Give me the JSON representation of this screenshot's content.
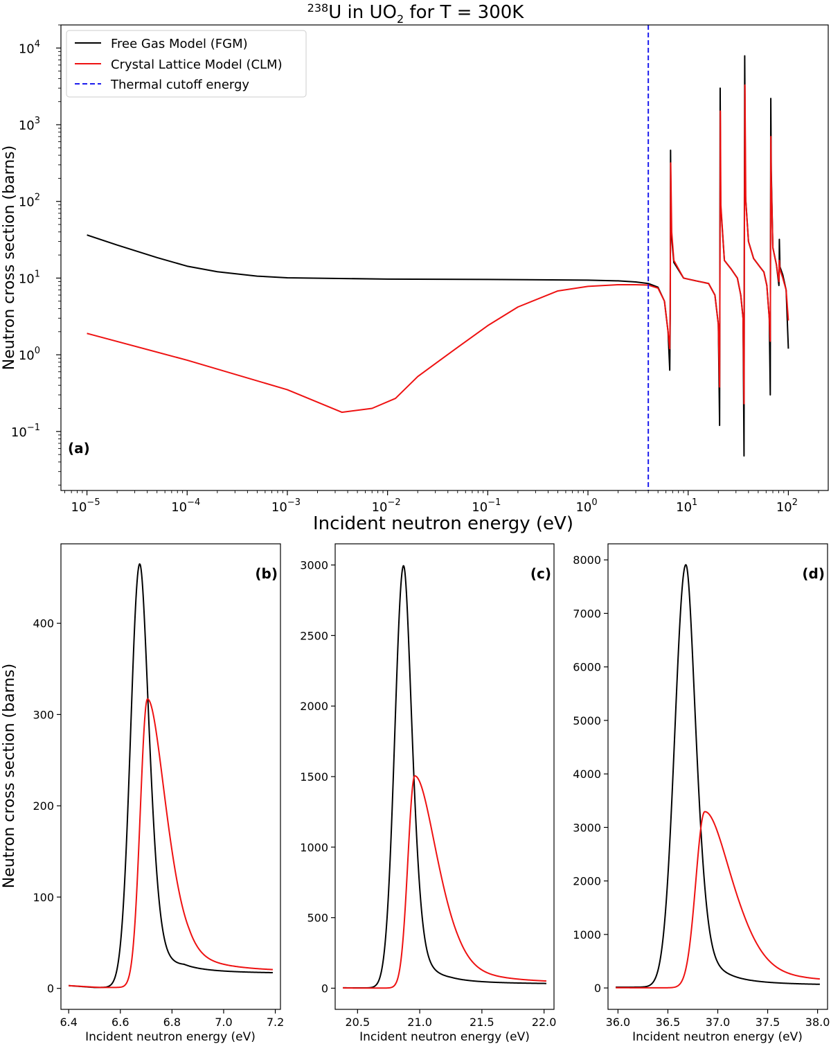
{
  "figure": {
    "title_iso": "238",
    "title_mid": "U in UO",
    "title_sub": "2",
    "title_end": " for T = 300K",
    "shared_ylabel": "Neutron cross section (barns)"
  },
  "chart_data": [
    {
      "panel": "(a)",
      "type": "line",
      "xscale": "log",
      "yscale": "log",
      "xlabel": "Incident neutron energy (eV)",
      "ylabel": "Neutron cross section (barns)",
      "xlim": [
        5.5e-06,
        250
      ],
      "ylim": [
        0.017,
        20000
      ],
      "x_ticks": [
        {
          "value": 1e-05,
          "base": "10",
          "exp": "−5"
        },
        {
          "value": 0.0001,
          "base": "10",
          "exp": "−4"
        },
        {
          "value": 0.001,
          "base": "10",
          "exp": "−3"
        },
        {
          "value": 0.01,
          "base": "10",
          "exp": "−2"
        },
        {
          "value": 0.1,
          "base": "10",
          "exp": "−1"
        },
        {
          "value": 1,
          "base": "10",
          "exp": "0"
        },
        {
          "value": 10,
          "base": "10",
          "exp": "1"
        },
        {
          "value": 100,
          "base": "10",
          "exp": "2"
        }
      ],
      "y_ticks": [
        {
          "value": 0.1,
          "base": "10",
          "exp": "−1"
        },
        {
          "value": 1,
          "base": "10",
          "exp": "0"
        },
        {
          "value": 10,
          "base": "10",
          "exp": "1"
        },
        {
          "value": 100,
          "base": "10",
          "exp": "2"
        },
        {
          "value": 1000,
          "base": "10",
          "exp": "3"
        },
        {
          "value": 10000,
          "base": "10",
          "exp": "4"
        }
      ],
      "legend_position": "upper-left",
      "series": [
        {
          "name": "Free Gas Model (FGM)",
          "color": "#000000",
          "style": "solid",
          "points": [
            [
              1e-05,
              36.5
            ],
            [
              2e-05,
              27
            ],
            [
              5e-05,
              18.5
            ],
            [
              0.0001,
              14.3
            ],
            [
              0.0002,
              12.1
            ],
            [
              0.0005,
              10.6
            ],
            [
              0.001,
              10.1
            ],
            [
              0.01,
              9.7
            ],
            [
              0.1,
              9.6
            ],
            [
              1,
              9.4
            ],
            [
              2,
              9.2
            ],
            [
              3,
              8.9
            ],
            [
              4,
              8.5
            ],
            [
              5,
              7.6
            ],
            [
              5.8,
              5
            ],
            [
              6.3,
              2
            ],
            [
              6.55,
              0.63
            ],
            [
              6.62,
              3
            ],
            [
              6.675,
              465
            ],
            [
              6.75,
              40
            ],
            [
              7.2,
              16
            ],
            [
              9,
              10
            ],
            [
              12,
              9.2
            ],
            [
              16,
              8.5
            ],
            [
              18.5,
              6
            ],
            [
              20,
              2.5
            ],
            [
              20.6,
              0.12
            ],
            [
              20.72,
              10
            ],
            [
              20.87,
              2995
            ],
            [
              21.1,
              90
            ],
            [
              23,
              17
            ],
            [
              27,
              13
            ],
            [
              31,
              10
            ],
            [
              33.5,
              6
            ],
            [
              35.3,
              3
            ],
            [
              36.1,
              0.048
            ],
            [
              36.3,
              12
            ],
            [
              36.68,
              7910
            ],
            [
              37.3,
              120
            ],
            [
              40,
              30
            ],
            [
              45,
              18
            ],
            [
              52,
              14
            ],
            [
              57,
              12
            ],
            [
              61,
              8
            ],
            [
              64.5,
              3
            ],
            [
              66,
              0.3
            ],
            [
              66.3,
              15
            ],
            [
              66.8,
              2200
            ],
            [
              67.5,
              250
            ],
            [
              70,
              25
            ],
            [
              76,
              15
            ],
            [
              80.5,
              8
            ],
            [
              80.9,
              10
            ],
            [
              81.3,
              32
            ],
            [
              82.5,
              14
            ],
            [
              88,
              11
            ],
            [
              95,
              7
            ],
            [
              100,
              1.2
            ]
          ]
        },
        {
          "name": "Crystal Lattice Model (CLM)",
          "color": "#ee1111",
          "style": "solid",
          "points": [
            [
              1e-05,
              1.9
            ],
            [
              0.0001,
              0.85
            ],
            [
              0.001,
              0.35
            ],
            [
              0.0035,
              0.178
            ],
            [
              0.007,
              0.2
            ],
            [
              0.012,
              0.27
            ],
            [
              0.02,
              0.52
            ],
            [
              0.05,
              1.25
            ],
            [
              0.1,
              2.4
            ],
            [
              0.2,
              4.2
            ],
            [
              0.5,
              6.8
            ],
            [
              1,
              7.8
            ],
            [
              2,
              8.2
            ],
            [
              3,
              8.2
            ],
            [
              4,
              8.1
            ],
            [
              5,
              7.4
            ],
            [
              5.8,
              5
            ],
            [
              6.3,
              2
            ],
            [
              6.55,
              1.2
            ],
            [
              6.62,
              4
            ],
            [
              6.7,
              317
            ],
            [
              6.85,
              40
            ],
            [
              7.2,
              17
            ],
            [
              9,
              10
            ],
            [
              12,
              9.2
            ],
            [
              16,
              8.5
            ],
            [
              18.5,
              6
            ],
            [
              20,
              2.5
            ],
            [
              20.6,
              0.38
            ],
            [
              20.78,
              15
            ],
            [
              20.96,
              1505
            ],
            [
              21.2,
              90
            ],
            [
              23,
              17
            ],
            [
              27,
              13
            ],
            [
              31,
              10
            ],
            [
              33.5,
              6
            ],
            [
              35.3,
              3
            ],
            [
              36.1,
              0.23
            ],
            [
              36.35,
              20
            ],
            [
              36.87,
              3295
            ],
            [
              37.6,
              100
            ],
            [
              40,
              30
            ],
            [
              45,
              18
            ],
            [
              52,
              14
            ],
            [
              57,
              12
            ],
            [
              61,
              8
            ],
            [
              64.5,
              3
            ],
            [
              66,
              1.5
            ],
            [
              66.4,
              20
            ],
            [
              66.9,
              700
            ],
            [
              67.5,
              200
            ],
            [
              70,
              25
            ],
            [
              76,
              15
            ],
            [
              80.5,
              9
            ],
            [
              80.9,
              11
            ],
            [
              81.3,
              17
            ],
            [
              82.5,
              13
            ],
            [
              88,
              10
            ],
            [
              95,
              7
            ],
            [
              100,
              2.8
            ]
          ]
        },
        {
          "name": "Thermal cutoff energy",
          "color": "#1a1aee",
          "style": "dashed",
          "vline_x": 4.0
        }
      ]
    },
    {
      "panel": "(b)",
      "type": "line",
      "xlabel": "Incident neutron energy (eV)",
      "xlim": [
        6.37,
        7.22
      ],
      "ylim": [
        -23,
        487
      ],
      "x_ticks": [
        "6.4",
        "6.6",
        "6.8",
        "7.0",
        "7.2"
      ],
      "y_ticks": [
        "0",
        "100",
        "200",
        "300",
        "400"
      ],
      "series": [
        {
          "name": "Free Gas Model (FGM)",
          "color": "#000000",
          "peak_x": 6.675,
          "peak_y": 465,
          "left_width": 0.035,
          "right_width": 0.04,
          "baseline_left": 3,
          "baseline_right": 16,
          "low_x": 6.5,
          "low_y": 1
        },
        {
          "name": "Crystal Lattice Model (CLM)",
          "color": "#ee1111",
          "peak_x": 6.705,
          "peak_y": 317,
          "left_width": 0.028,
          "right_width": 0.08,
          "baseline_left": 3,
          "baseline_right": 17,
          "low_x": 6.52,
          "low_y": 1
        }
      ]
    },
    {
      "panel": "(c)",
      "type": "line",
      "xlabel": "Incident neutron energy (eV)",
      "xlim": [
        20.32,
        22.08
      ],
      "ylim": [
        -150,
        3150
      ],
      "x_ticks": [
        "20.5",
        "21.0",
        "21.5",
        "22.0"
      ],
      "y_ticks": [
        "0",
        "500",
        "1000",
        "1500",
        "2000",
        "2500",
        "3000"
      ],
      "series": [
        {
          "name": "Free Gas Model (FGM)",
          "color": "#000000",
          "peak_x": 20.87,
          "peak_y": 2995,
          "left_width": 0.07,
          "right_width": 0.075,
          "baseline_left": 3,
          "baseline_right": 28,
          "low_x": 20.45,
          "low_y": 2
        },
        {
          "name": "Crystal Lattice Model (CLM)",
          "color": "#ee1111",
          "peak_x": 20.96,
          "peak_y": 1505,
          "left_width": 0.055,
          "right_width": 0.2,
          "baseline_left": 2,
          "baseline_right": 28,
          "low_x": 20.5,
          "low_y": 1
        }
      ]
    },
    {
      "panel": "(d)",
      "type": "line",
      "xlabel": "Incident neutron energy (eV)",
      "xlim": [
        35.9,
        38.1
      ],
      "ylim": [
        -400,
        8300
      ],
      "x_ticks": [
        "36.0",
        "36.5",
        "37.0",
        "37.5",
        "38.0"
      ],
      "y_ticks": [
        "0",
        "1000",
        "2000",
        "3000",
        "4000",
        "5000",
        "6000",
        "7000",
        "8000"
      ],
      "series": [
        {
          "name": "Free Gas Model (FGM)",
          "color": "#000000",
          "peak_x": 36.68,
          "peak_y": 7910,
          "left_width": 0.11,
          "right_width": 0.11,
          "baseline_left": 15,
          "baseline_right": 45,
          "low_x": 36.0,
          "low_y": 15
        },
        {
          "name": "Crystal Lattice Model (CLM)",
          "color": "#ee1111",
          "peak_x": 36.87,
          "peak_y": 3295,
          "left_width": 0.09,
          "right_width": 0.3,
          "baseline_left": 5,
          "baseline_right": 75,
          "low_x": 36.2,
          "low_y": 3
        }
      ]
    }
  ]
}
